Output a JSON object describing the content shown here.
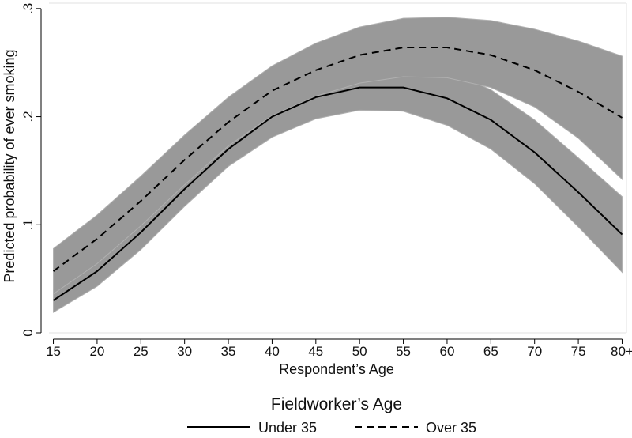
{
  "chart_data": {
    "type": "line",
    "xlabel": "Respondent’s Age",
    "ylabel": "Predicted probability of ever smoking",
    "x_ticks": [
      "15",
      "20",
      "25",
      "30",
      "35",
      "40",
      "45",
      "50",
      "55",
      "60",
      "65",
      "70",
      "75",
      "80+"
    ],
    "x_values": [
      15,
      20,
      25,
      30,
      35,
      40,
      45,
      50,
      55,
      60,
      65,
      70,
      75,
      80
    ],
    "y_ticks": [
      {
        "value": 0,
        "label": "0"
      },
      {
        "value": 0.1,
        "label": ".1"
      },
      {
        "value": 0.2,
        "label": ".2"
      },
      {
        "value": 0.3,
        "label": ".3"
      }
    ],
    "xlim": [
      14.5,
      80.5
    ],
    "ylim": [
      0,
      0.305
    ],
    "grid": false,
    "legend": {
      "title": "Fieldworker’s Age",
      "placement": "bottom"
    },
    "band_color": "#999999",
    "line_color": "#000000",
    "series": [
      {
        "name": "Under 35",
        "line_style": "solid",
        "values": [
          0.03,
          0.057,
          0.093,
          0.133,
          0.17,
          0.2,
          0.218,
          0.227,
          0.227,
          0.217,
          0.197,
          0.167,
          0.13,
          0.091
        ],
        "lower": [
          0.019,
          0.043,
          0.077,
          0.117,
          0.154,
          0.181,
          0.198,
          0.206,
          0.205,
          0.192,
          0.17,
          0.138,
          0.098,
          0.056
        ],
        "upper": [
          0.041,
          0.071,
          0.109,
          0.15,
          0.187,
          0.219,
          0.238,
          0.248,
          0.25,
          0.243,
          0.225,
          0.197,
          0.162,
          0.126
        ]
      },
      {
        "name": "Over 35",
        "line_style": "dashed",
        "values": [
          0.057,
          0.087,
          0.122,
          0.16,
          0.195,
          0.224,
          0.243,
          0.257,
          0.264,
          0.264,
          0.257,
          0.243,
          0.223,
          0.199
        ],
        "lower": [
          0.036,
          0.064,
          0.099,
          0.137,
          0.173,
          0.201,
          0.219,
          0.231,
          0.237,
          0.236,
          0.227,
          0.209,
          0.18,
          0.142
        ],
        "upper": [
          0.078,
          0.109,
          0.145,
          0.183,
          0.218,
          0.247,
          0.268,
          0.283,
          0.291,
          0.292,
          0.289,
          0.281,
          0.27,
          0.256
        ]
      }
    ]
  }
}
